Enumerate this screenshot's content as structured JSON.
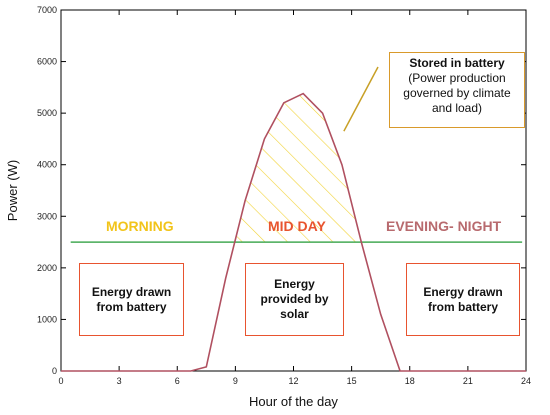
{
  "chart_data": {
    "type": "line",
    "title": "",
    "xlabel": "Hour of the day",
    "ylabel": "Power (W)",
    "xlim": [
      0,
      24
    ],
    "ylim": [
      0,
      7000
    ],
    "xticks": [
      0,
      3,
      6,
      9,
      12,
      15,
      18,
      21,
      24
    ],
    "yticks": [
      0,
      1000,
      2000,
      3000,
      4000,
      5000,
      6000,
      7000
    ],
    "grid": false,
    "series": [
      {
        "color": "#b05060",
        "x": [
          0,
          6.7,
          7.5,
          8.5,
          9.5,
          10.5,
          11.5,
          12.5,
          13.5,
          14.5,
          15.5,
          16.5,
          17.5,
          24
        ],
        "y": [
          0,
          0,
          80,
          1800,
          3300,
          4500,
          5200,
          5380,
          5000,
          4000,
          2500,
          1100,
          0,
          0
        ]
      }
    ],
    "load_line": {
      "color": "#44aa55",
      "y": 2500
    },
    "battery_fill": {
      "color": "#f2d33a",
      "hatch": "diagonal"
    },
    "periods": [
      {
        "label": "MORNING",
        "color": "#f2c41a"
      },
      {
        "label": "MID DAY",
        "color": "#e8542f"
      },
      {
        "label": "EVENING- NIGHT",
        "color": "#b86a6e"
      }
    ],
    "boxes": [
      {
        "label": "Energy drawn\nfrom battery"
      },
      {
        "label": "Energy\nprovided by\nsolar"
      },
      {
        "label": "Energy drawn\nfrom battery"
      }
    ],
    "callout": {
      "title": "Stored in battery",
      "body": "(Power production\ngoverned by climate\nand load)"
    }
  }
}
